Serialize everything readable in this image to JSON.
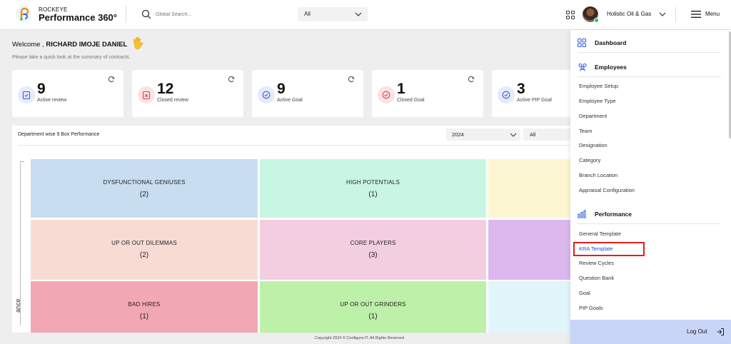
{
  "header": {
    "logo_small": "ROCKEYE",
    "logo_big": "Performance 360°",
    "search_placeholder": "Global Search...",
    "search_filter": "All",
    "company": "Holistic Oil & Gas",
    "menu_label": "Menu"
  },
  "welcome": {
    "prefix": "Welcome , ",
    "name": "RICHARD IMOJE DANIEL",
    "subtitle": "Please take a quick look at the summary of contracts."
  },
  "stats": [
    {
      "value": "9",
      "label": "Active review",
      "color": "#e6ebfb",
      "icon_color": "#3b5bd6"
    },
    {
      "value": "12",
      "label": "Closed review",
      "color": "#fbe3e3",
      "icon_color": "#d64545"
    },
    {
      "value": "9",
      "label": "Active Goal",
      "color": "#e6ebfb",
      "icon_color": "#3b5bd6"
    },
    {
      "value": "1",
      "label": "Closed Goal",
      "color": "#fbe3e3",
      "icon_color": "#d64545"
    },
    {
      "value": "3",
      "label": "Active PIP Goal",
      "color": "#e6ebfb",
      "icon_color": "#3b5bd6"
    }
  ],
  "panel": {
    "title": "Department wise 9 Box Performance",
    "year": "2024",
    "filter": "All",
    "axis_label": "ance"
  },
  "boxes": [
    {
      "title": "DYSFUNCTIONAL GENIUSES",
      "count": "(2)",
      "color": "#c8ddf0"
    },
    {
      "title": "HIGH POTENTIALS",
      "count": "(1)",
      "color": "#c9f5e3"
    },
    {
      "title": "",
      "count": "",
      "color": "#fbf6cf"
    },
    {
      "title": "UP OR OUT DILEMMAS",
      "count": "(2)",
      "color": "#f8dcd4"
    },
    {
      "title": "CORE PLAYERS",
      "count": "(3)",
      "color": "#f3cde0"
    },
    {
      "title": "",
      "count": "",
      "color": "#dcb8ee"
    },
    {
      "title": "BAD HIRES",
      "count": "(1)",
      "color": "#f2a7b4"
    },
    {
      "title": "UP OR OUT GRINDERS",
      "count": "(1)",
      "color": "#bdf0a9"
    },
    {
      "title": "",
      "count": "",
      "color": "#e1f6fb"
    }
  ],
  "footer": "Copyright 2024 © Configure.IT. All Rights Reserved",
  "sidemenu": {
    "dashboard": "Dashboard",
    "employees": "Employees",
    "employee_items": [
      "Employee Setup",
      "Employee Type",
      "Department",
      "Team",
      "Designation",
      "Category",
      "Branch Location",
      "Appraisal Configuration"
    ],
    "performance": "Performance",
    "performance_items": [
      "General Template",
      "KRA Template",
      "Review Cycles",
      "Question Bank",
      "Goal",
      "PIP Goals"
    ],
    "logout": "Log Out"
  }
}
